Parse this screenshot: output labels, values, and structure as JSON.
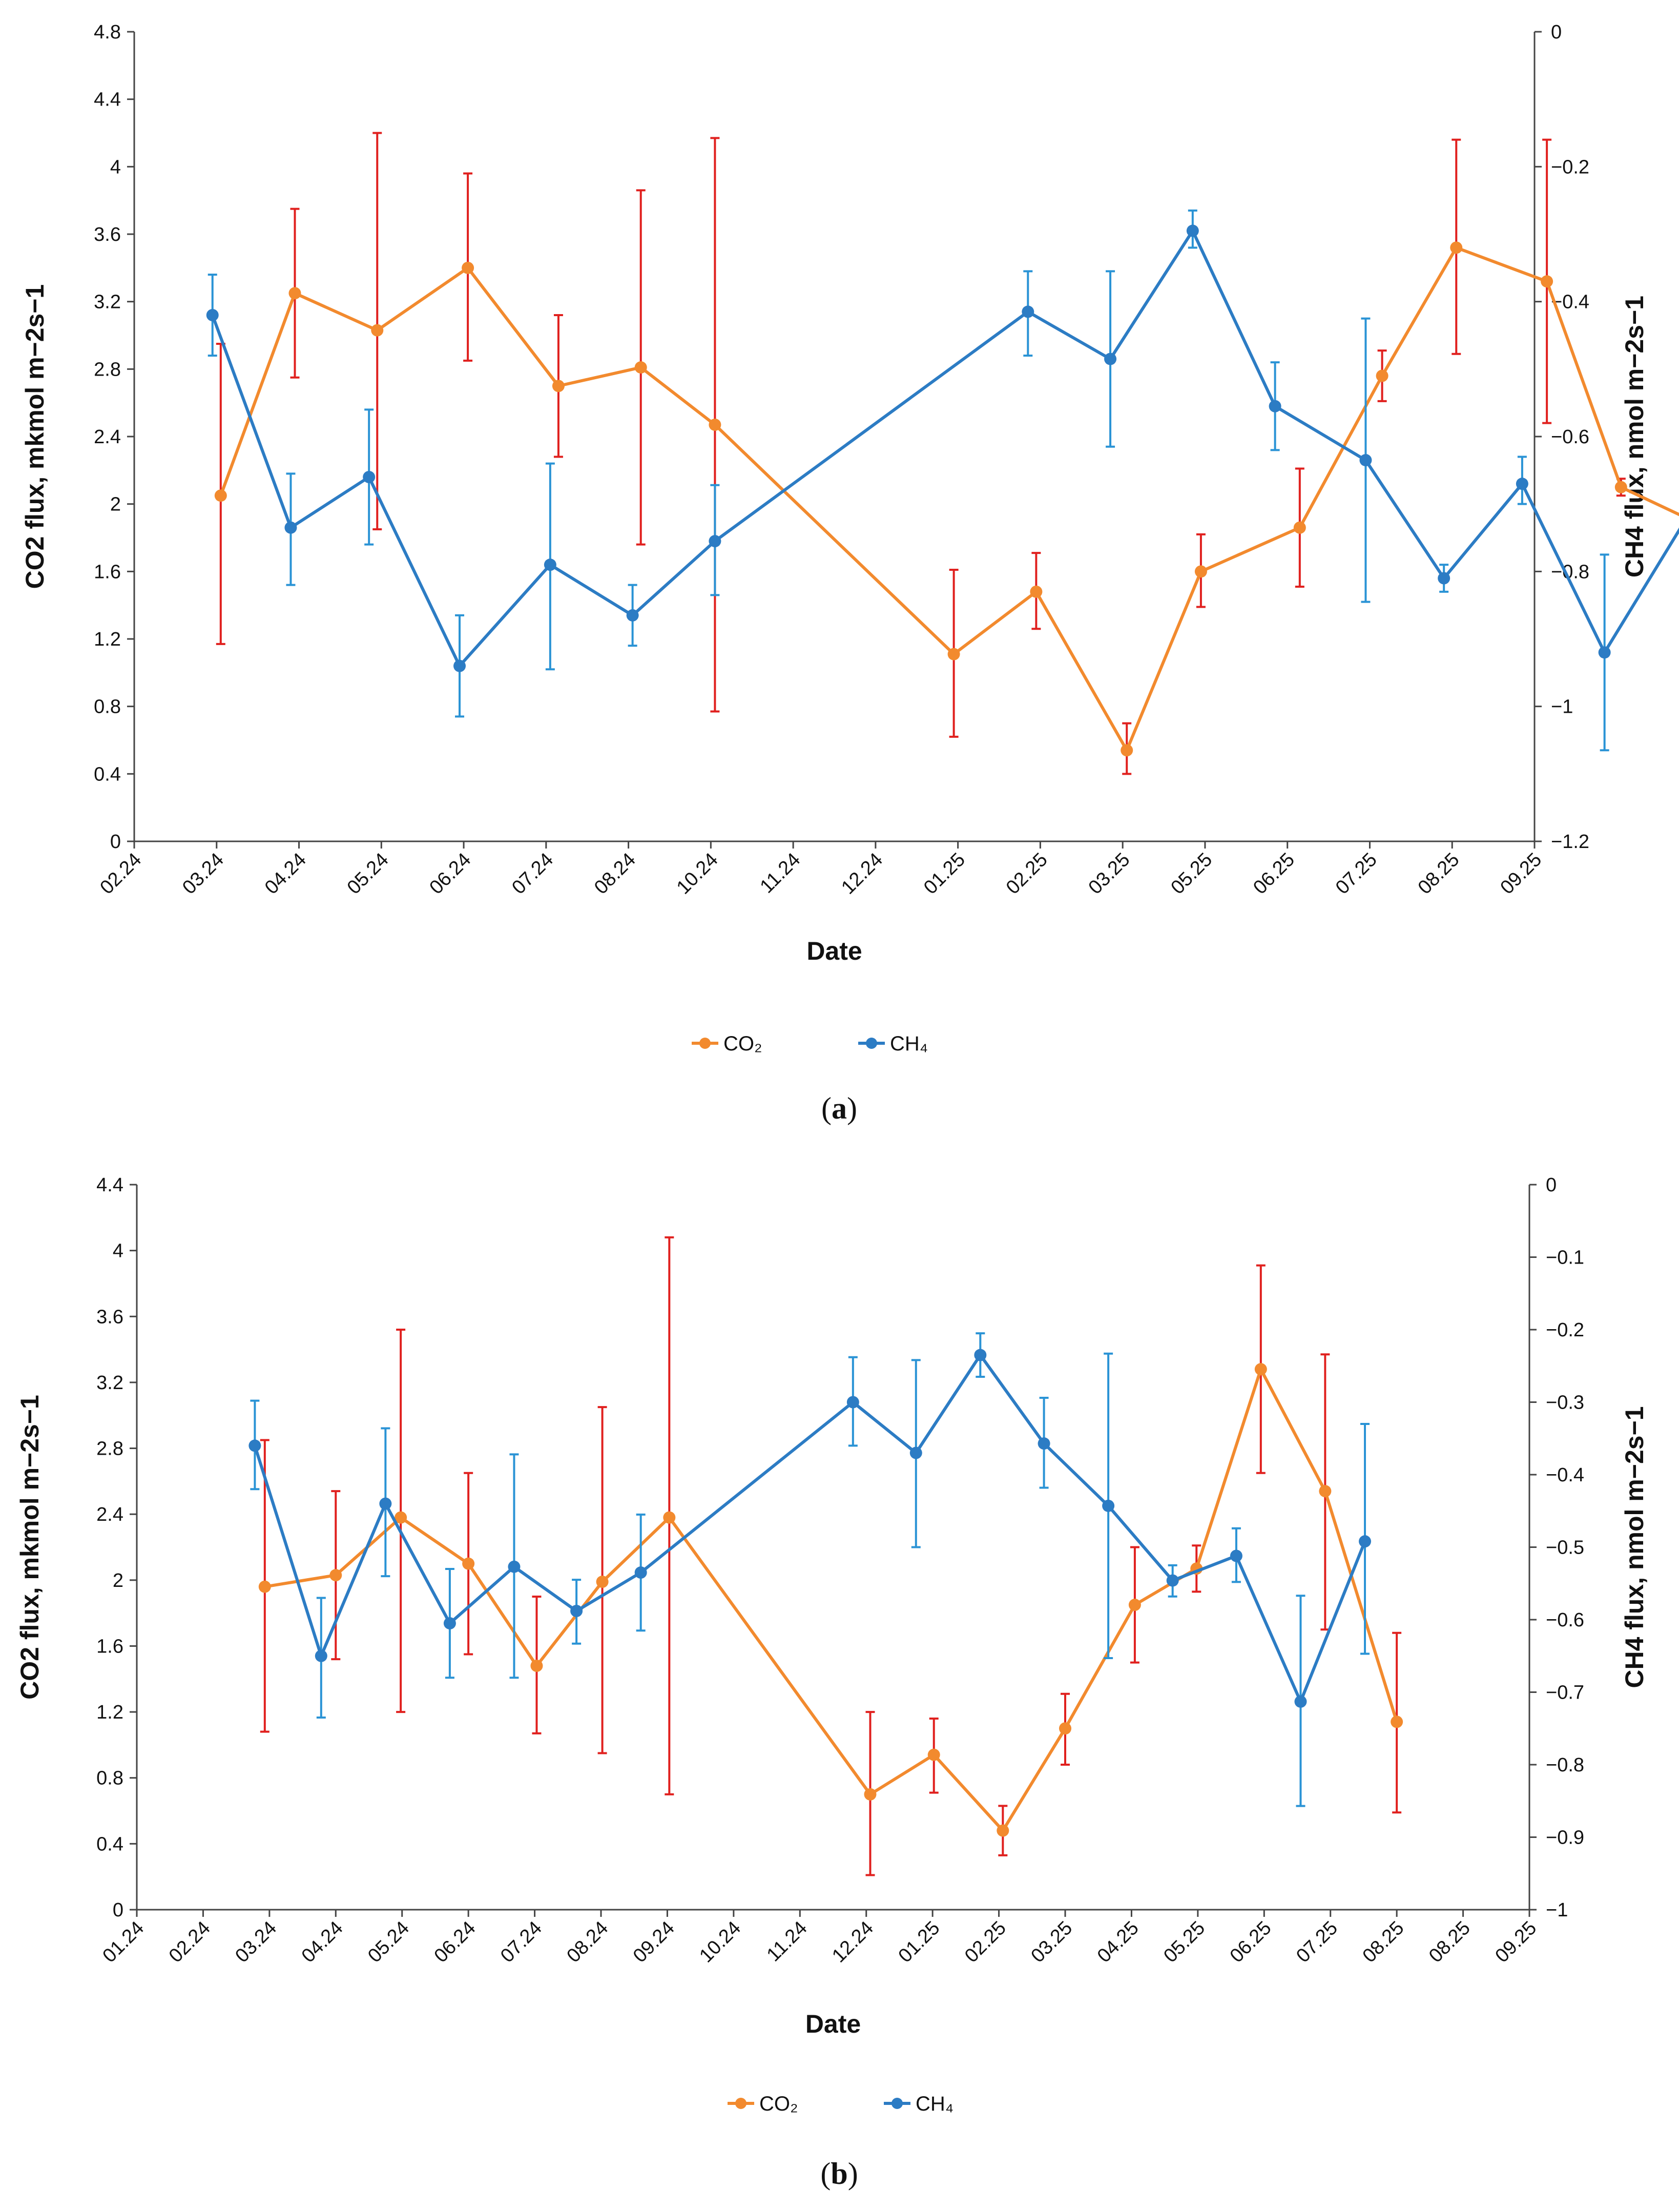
{
  "colors": {
    "co2": "#F28A2E",
    "ch4": "#2C7CC4",
    "co2_error": "#E0201E",
    "ch4_error": "#2A93D5",
    "axis": "#444444"
  },
  "chart_data": [
    {
      "type": "line",
      "panel_label": "a",
      "xlabel": "Date",
      "ylabel": "CO2 flux, mkmol m−2s−1",
      "y2label": "CH4 flux, nmol m−2s−1",
      "ylim": [
        0,
        4.8
      ],
      "y_ticks": [
        "0",
        "0.4",
        "0.8",
        "1.2",
        "1.6",
        "2",
        "2.4",
        "2.8",
        "3.2",
        "3.6",
        "4",
        "4.4",
        "4.8"
      ],
      "y2lim": [
        -1.2,
        0
      ],
      "y2_ticks": [
        "−1.2",
        "−1",
        "−0.8",
        "−0.6",
        "−0.4",
        "−0.2",
        "0"
      ],
      "x_ticks": [
        "02.24",
        "03.24",
        "04.24",
        "05.24",
        "06.24",
        "07.24",
        "08.24",
        "10.24",
        "11.24",
        "12.24",
        "01.25",
        "02.25",
        "03.25",
        "05.25",
        "06.25",
        "07.25",
        "08.25",
        "09.25"
      ],
      "legend": [
        "CO₂",
        "CH₄"
      ],
      "series": [
        {
          "name": "CO2",
          "axis": "left",
          "x": [
            1.05,
            1.95,
            2.95,
            4.05,
            5.15,
            6.15,
            7.05,
            9.95,
            10.95,
            12.05,
            12.95,
            14.15,
            15.15,
            16.05,
            17.15,
            18.05,
            19.05
          ],
          "values": [
            2.05,
            3.25,
            3.03,
            3.4,
            2.7,
            2.81,
            2.47,
            1.11,
            1.48,
            0.54,
            1.6,
            1.86,
            2.76,
            3.52,
            3.32,
            2.1,
            1.87
          ],
          "err_low": [
            1.17,
            2.75,
            1.85,
            2.85,
            2.28,
            1.76,
            0.77,
            0.62,
            1.26,
            0.4,
            1.39,
            1.51,
            2.61,
            2.89,
            2.48,
            2.05,
            1.32
          ],
          "err_high": [
            2.95,
            3.75,
            4.2,
            3.96,
            3.12,
            3.86,
            4.17,
            1.61,
            1.71,
            0.7,
            1.82,
            2.21,
            2.91,
            4.16,
            4.16,
            2.15,
            2.42
          ]
        },
        {
          "name": "CH4",
          "axis": "right",
          "x": [
            0.95,
            1.9,
            2.85,
            3.95,
            5.05,
            6.05,
            7.05,
            10.85,
            11.85,
            12.85,
            13.85,
            14.95,
            15.9,
            16.85,
            17.85,
            18.95
          ],
          "values": [
            -0.42,
            -0.735,
            -0.66,
            -0.94,
            -0.79,
            -0.865,
            -0.755,
            -0.415,
            -0.485,
            -0.295,
            -0.555,
            -0.635,
            -0.81,
            -0.67,
            -0.92,
            -0.7
          ],
          "err_low": [
            -0.48,
            -0.82,
            -0.76,
            -1.015,
            -0.945,
            -0.91,
            -0.835,
            -0.48,
            -0.615,
            -0.32,
            -0.62,
            -0.845,
            -0.83,
            -0.7,
            -1.065,
            -0.855
          ],
          "err_high": [
            -0.36,
            -0.655,
            -0.56,
            -0.865,
            -0.64,
            -0.82,
            -0.672,
            -0.355,
            -0.355,
            -0.265,
            -0.49,
            -0.425,
            -0.79,
            -0.63,
            -0.775,
            -0.54
          ]
        }
      ]
    },
    {
      "type": "line",
      "panel_label": "b",
      "xlabel": "Date",
      "ylabel": "CO2 flux, mkmol m−2s−1",
      "y2label": "CH4 flux, nmol m−2s−1",
      "ylim": [
        0,
        4.4
      ],
      "y_ticks": [
        "0",
        "0.4",
        "0.8",
        "1.2",
        "1.6",
        "2",
        "2.4",
        "2.8",
        "3.2",
        "3.6",
        "4",
        "4.4"
      ],
      "y2lim": [
        -1,
        0
      ],
      "y2_ticks": [
        "−1",
        "−0.9",
        "−0.8",
        "−0.7",
        "−0.6",
        "−0.5",
        "−0.4",
        "−0.3",
        "−0.2",
        "−0.1",
        "0"
      ],
      "x_ticks": [
        "01.24",
        "02.24",
        "03.24",
        "04.24",
        "05.24",
        "06.24",
        "07.24",
        "08.24",
        "09.24",
        "10.24",
        "11.24",
        "12.24",
        "01.25",
        "02.25",
        "03.25",
        "04.25",
        "05.25",
        "06.25",
        "07.25",
        "08.25",
        "08.25",
        "09.25"
      ],
      "legend": [
        "CO₂",
        "CH₄"
      ],
      "series": [
        {
          "name": "CO2",
          "axis": "left",
          "x": [
            1.93,
            3.0,
            3.98,
            5.0,
            6.03,
            7.02,
            8.03,
            11.06,
            12.02,
            13.06,
            14.0,
            15.05,
            15.98,
            16.95,
            17.92,
            19.0
          ],
          "values": [
            1.96,
            2.03,
            2.38,
            2.1,
            1.48,
            1.99,
            2.38,
            0.7,
            0.94,
            0.48,
            1.1,
            1.85,
            2.07,
            3.28,
            2.54,
            1.14
          ],
          "err_low": [
            1.08,
            1.52,
            1.2,
            1.55,
            1.07,
            0.95,
            0.7,
            0.21,
            0.71,
            0.33,
            0.88,
            1.5,
            1.93,
            2.65,
            1.7,
            0.59
          ],
          "err_high": [
            2.85,
            2.54,
            3.52,
            2.65,
            1.9,
            3.05,
            4.08,
            1.2,
            1.16,
            0.63,
            1.31,
            2.2,
            2.21,
            3.91,
            3.37,
            1.68
          ]
        },
        {
          "name": "CH4",
          "axis": "right",
          "x": [
            1.78,
            2.78,
            3.75,
            4.72,
            5.69,
            6.63,
            7.6,
            10.8,
            11.75,
            12.72,
            13.68,
            14.65,
            15.62,
            16.58,
            17.55,
            18.52
          ],
          "values": [
            -0.36,
            -0.65,
            -0.44,
            -0.605,
            -0.527,
            -0.588,
            -0.535,
            -0.3,
            -0.37,
            -0.235,
            -0.357,
            -0.443,
            -0.546,
            -0.512,
            -0.713,
            -0.492
          ],
          "err_low": [
            -0.42,
            -0.735,
            -0.54,
            -0.68,
            -0.68,
            -0.633,
            -0.615,
            -0.36,
            -0.5,
            -0.265,
            -0.418,
            -0.653,
            -0.568,
            -0.548,
            -0.857,
            -0.647
          ],
          "err_high": [
            -0.298,
            -0.57,
            -0.336,
            -0.53,
            -0.372,
            -0.545,
            -0.455,
            -0.238,
            -0.242,
            -0.205,
            -0.294,
            -0.233,
            -0.525,
            -0.474,
            -0.567,
            -0.33
          ]
        }
      ]
    }
  ]
}
